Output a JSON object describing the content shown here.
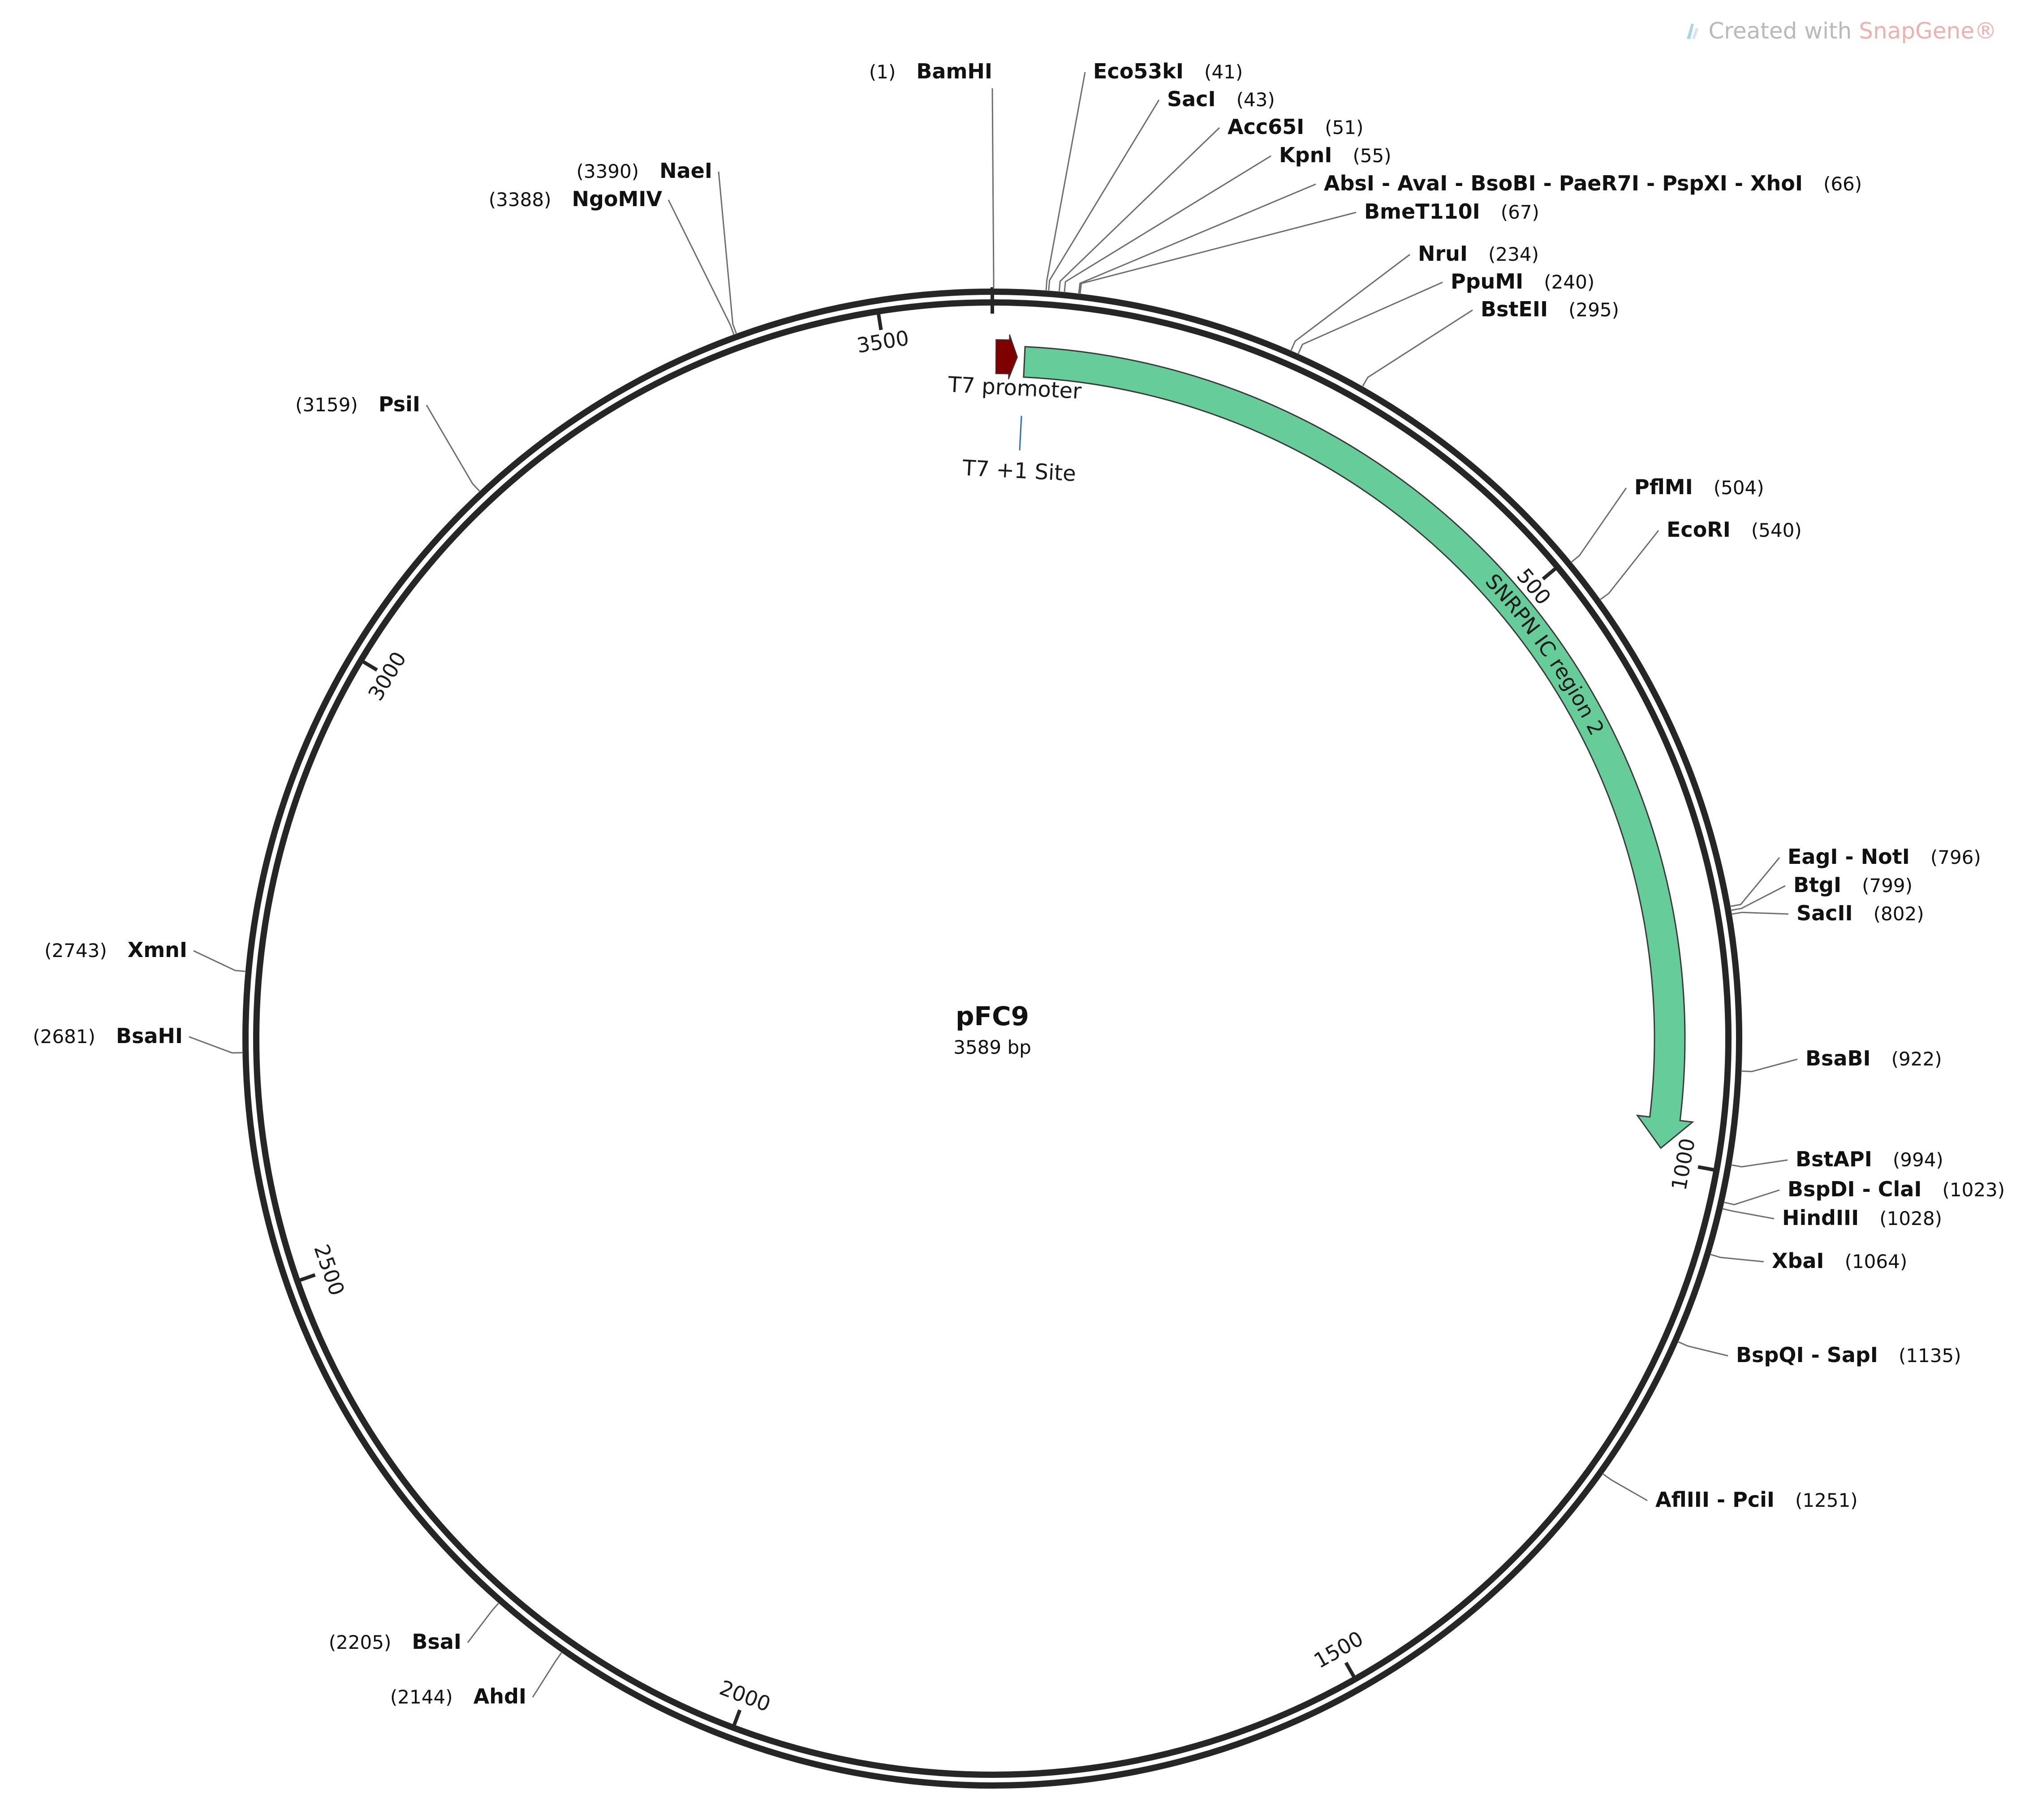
{
  "plasmid": {
    "name": "pFC9",
    "size_label": "3589 bp",
    "length": 3589
  },
  "watermark": {
    "prefix": "Created with ",
    "brand": "SnapGene®"
  },
  "ticks": [
    {
      "pos": 500,
      "label": "500"
    },
    {
      "pos": 1000,
      "label": "1000"
    },
    {
      "pos": 1500,
      "label": "1500"
    },
    {
      "pos": 2000,
      "label": "2000"
    },
    {
      "pos": 2500,
      "label": "2500"
    },
    {
      "pos": 3000,
      "label": "3000"
    },
    {
      "pos": 3500,
      "label": "3500"
    }
  ],
  "features": [
    {
      "name": "T7 promoter",
      "type": "promoter",
      "start": 1,
      "end": 19,
      "color": "#7f0000"
    },
    {
      "name": "SNRPN IC region 2",
      "type": "region",
      "start": 27,
      "end": 990,
      "color": "#66cc99"
    },
    {
      "name": "T7 +1 Site",
      "type": "site",
      "color": "#2b6fbf"
    }
  ],
  "sites": [
    {
      "name": "BamHI",
      "pos": "(1)",
      "bp": 1
    },
    {
      "name": "Eco53kI",
      "pos": "(41)",
      "bp": 41
    },
    {
      "name": "SacI",
      "pos": "(43)",
      "bp": 43
    },
    {
      "name": "Acc65I",
      "pos": "(51)",
      "bp": 51
    },
    {
      "name": "KpnI",
      "pos": "(55)",
      "bp": 55
    },
    {
      "name": "AbsI - AvaI - BsoBI - PaeR7I - PspXI - XhoI",
      "pos": "(66)",
      "bp": 66
    },
    {
      "name": "BmeT110I",
      "pos": "(67)",
      "bp": 67
    },
    {
      "name": "NruI",
      "pos": "(234)",
      "bp": 234
    },
    {
      "name": "PpuMI",
      "pos": "(240)",
      "bp": 240
    },
    {
      "name": "BstEII",
      "pos": "(295)",
      "bp": 295
    },
    {
      "name": "PflMI",
      "pos": "(504)",
      "bp": 504
    },
    {
      "name": "EcoRI",
      "pos": "(540)",
      "bp": 540
    },
    {
      "name": "EagI - NotI",
      "pos": "(796)",
      "bp": 796
    },
    {
      "name": "BtgI",
      "pos": "(799)",
      "bp": 799
    },
    {
      "name": "SacII",
      "pos": "(802)",
      "bp": 802
    },
    {
      "name": "BsaBI",
      "pos": "(922)",
      "bp": 922
    },
    {
      "name": "BstAPI",
      "pos": "(994)",
      "bp": 994
    },
    {
      "name": "BspDI - ClaI",
      "pos": "(1023)",
      "bp": 1023
    },
    {
      "name": "HindIII",
      "pos": "(1028)",
      "bp": 1028
    },
    {
      "name": "XbaI",
      "pos": "(1064)",
      "bp": 1064
    },
    {
      "name": "BspQI - SapI",
      "pos": "(1135)",
      "bp": 1135
    },
    {
      "name": "AflIII - PciI",
      "pos": "(1251)",
      "bp": 1251
    },
    {
      "name": "AhdI",
      "pos": "(2144)",
      "bp": 2144
    },
    {
      "name": "BsaI",
      "pos": "(2205)",
      "bp": 2205
    },
    {
      "name": "BsaHI",
      "pos": "(2681)",
      "bp": 2681
    },
    {
      "name": "XmnI",
      "pos": "(2743)",
      "bp": 2743
    },
    {
      "name": "PsiI",
      "pos": "(3159)",
      "bp": 3159
    },
    {
      "name": "NgoMIV",
      "pos": "(3388)",
      "bp": 3388
    },
    {
      "name": "NaeI",
      "pos": "(3390)",
      "bp": 3390
    }
  ]
}
